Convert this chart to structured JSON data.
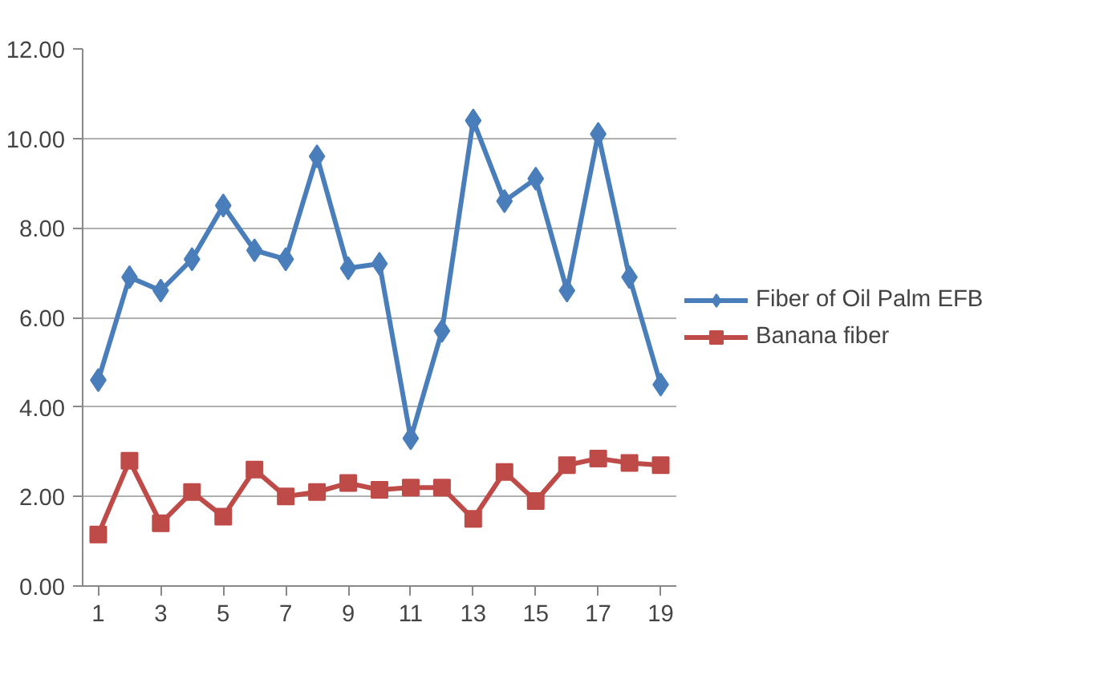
{
  "chart_data": {
    "type": "line",
    "x": [
      1,
      2,
      3,
      4,
      5,
      6,
      7,
      8,
      9,
      10,
      11,
      12,
      13,
      14,
      15,
      16,
      17,
      18,
      19
    ],
    "series": [
      {
        "name": "Fiber of Oil Palm EFB",
        "color": "#4a7ebb",
        "marker": "diamond",
        "values": [
          4.6,
          6.9,
          6.6,
          7.3,
          8.5,
          7.5,
          7.3,
          9.6,
          7.1,
          7.2,
          3.3,
          5.7,
          10.4,
          8.6,
          9.1,
          6.6,
          10.1,
          6.9,
          4.5
        ]
      },
      {
        "name": "Banana fiber",
        "color": "#be4b48",
        "marker": "square",
        "values": [
          1.15,
          2.8,
          1.4,
          2.1,
          1.55,
          2.6,
          2.0,
          2.1,
          2.3,
          2.15,
          2.2,
          2.2,
          1.5,
          2.55,
          1.9,
          2.7,
          2.85,
          2.75,
          2.7
        ]
      }
    ],
    "xlim": [
      0.5,
      19.5
    ],
    "xticks": [
      1,
      3,
      5,
      7,
      9,
      11,
      13,
      15,
      17,
      19
    ],
    "ylim": [
      0,
      12
    ],
    "yticks": [
      {
        "value": 0,
        "label": "0.00"
      },
      {
        "value": 2,
        "label": "2.00"
      },
      {
        "value": 4,
        "label": "4.00"
      },
      {
        "value": 6,
        "label": "6.00"
      },
      {
        "value": 8,
        "label": "8.00"
      },
      {
        "value": 10,
        "label": "10.00"
      },
      {
        "value": 12,
        "label": "12.00"
      }
    ],
    "grid": "y",
    "legend": "right",
    "line_style": "solid"
  }
}
